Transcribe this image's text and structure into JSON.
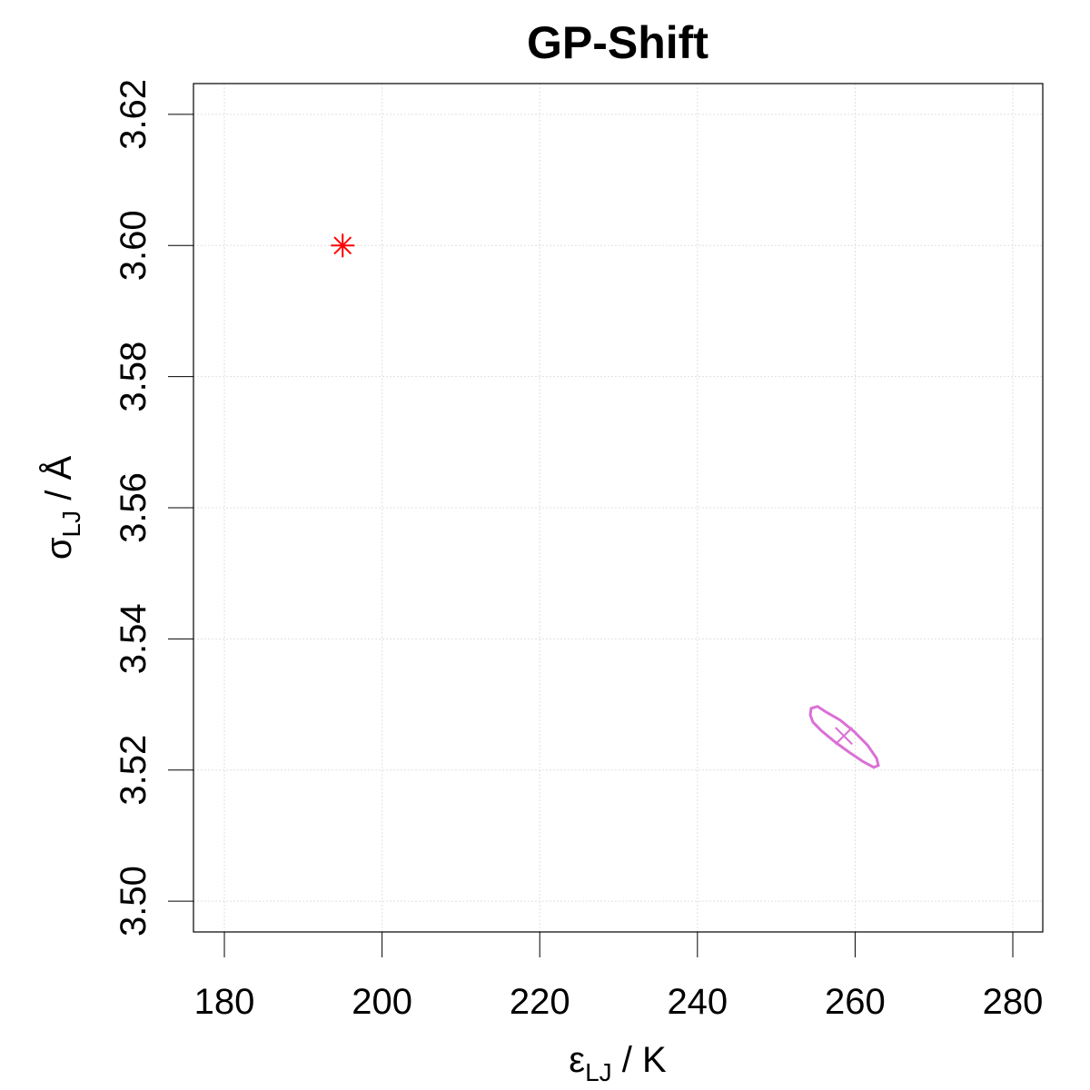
{
  "chart_data": {
    "type": "scatter",
    "title": "GP-Shift",
    "xlabel": {
      "symbol": "ε",
      "subscript": "LJ",
      "unit": " / K"
    },
    "ylabel": {
      "symbol": "σ",
      "subscript": "LJ",
      "unit": " / Å"
    },
    "xlim": [
      176.08,
      283.8
    ],
    "ylim": [
      3.4953,
      3.6247
    ],
    "xticks": [
      180,
      200,
      220,
      240,
      260,
      280
    ],
    "yticks": [
      {
        "value": 3.5,
        "label": "3.50"
      },
      3.52,
      3.54,
      3.56,
      3.58,
      {
        "value": 3.6,
        "label": "3.60"
      },
      3.62
    ],
    "grid": true,
    "series": [
      {
        "marker": "asterisk",
        "color": "#ff0000",
        "x": [
          195
        ],
        "values": [
          3.6
        ]
      },
      {
        "marker": "cross",
        "color": "#da70d6",
        "x": [
          258.57
        ],
        "values": [
          3.5252
        ]
      }
    ],
    "lines": [
      {
        "color": "#da70d6",
        "x": [
          254.42,
          255.23,
          256.38,
          258.11,
          259.84,
          261.57,
          262.72,
          262.95,
          262.37,
          260.99,
          259.26,
          257.53,
          255.81,
          254.65,
          254.31
        ],
        "values": [
          3.5294,
          3.5297,
          3.5288,
          3.5276,
          3.5259,
          3.5238,
          3.5218,
          3.5207,
          3.5204,
          3.5213,
          3.5227,
          3.5242,
          3.5259,
          3.5273,
          3.5284
        ]
      }
    ]
  }
}
